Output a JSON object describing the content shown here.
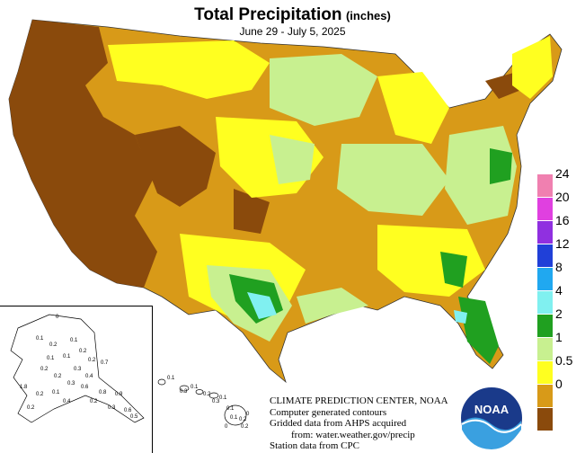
{
  "title": "Total Precipitation",
  "unit": "(inches)",
  "date_range": "June 29 - July 5, 2025",
  "legend": {
    "items": [
      {
        "label": "24",
        "color": "#f080b0"
      },
      {
        "label": "20",
        "color": "#e040e0"
      },
      {
        "label": "16",
        "color": "#9030e0"
      },
      {
        "label": "12",
        "color": "#2040d8"
      },
      {
        "label": "8",
        "color": "#20a8f0"
      },
      {
        "label": "4",
        "color": "#80f0f0"
      },
      {
        "label": "2",
        "color": "#20a020"
      },
      {
        "label": "1",
        "color": "#c8f090"
      },
      {
        "label": "0.5",
        "color": "#ffff20"
      },
      {
        "label": "0",
        "color": "#d89a18"
      },
      {
        "label": "",
        "color": "#8a4a0c"
      }
    ]
  },
  "credit": {
    "line1": "CLIMATE PREDICTION CENTER, NOAA",
    "line2": "Computer generated contours",
    "line3": "Gridded data from AHPS acquired",
    "line4": "from: water.weather.gov/precip",
    "line5": "Station data from CPC"
  },
  "logo": {
    "text": "NOAA"
  },
  "alaska_values": [
    "0",
    "0.1",
    "0.2",
    "0.1",
    "0.2",
    "0.2",
    "0.1",
    "0.1",
    "0.2",
    "0.3",
    "0.4",
    "0.2",
    "0.7",
    "0.3",
    "1.8",
    "0.2",
    "0.1",
    "0.6",
    "0.8",
    "0.9",
    "0.4",
    "0.2",
    "0.3",
    "0.6",
    "0.5",
    "0.2"
  ],
  "hawaii_values": [
    "0.1",
    "0.3",
    "0.1",
    "0.2",
    "0.3",
    "0.1",
    "0.1",
    "0.1",
    "0.2",
    "0",
    "0.2",
    "0"
  ]
}
